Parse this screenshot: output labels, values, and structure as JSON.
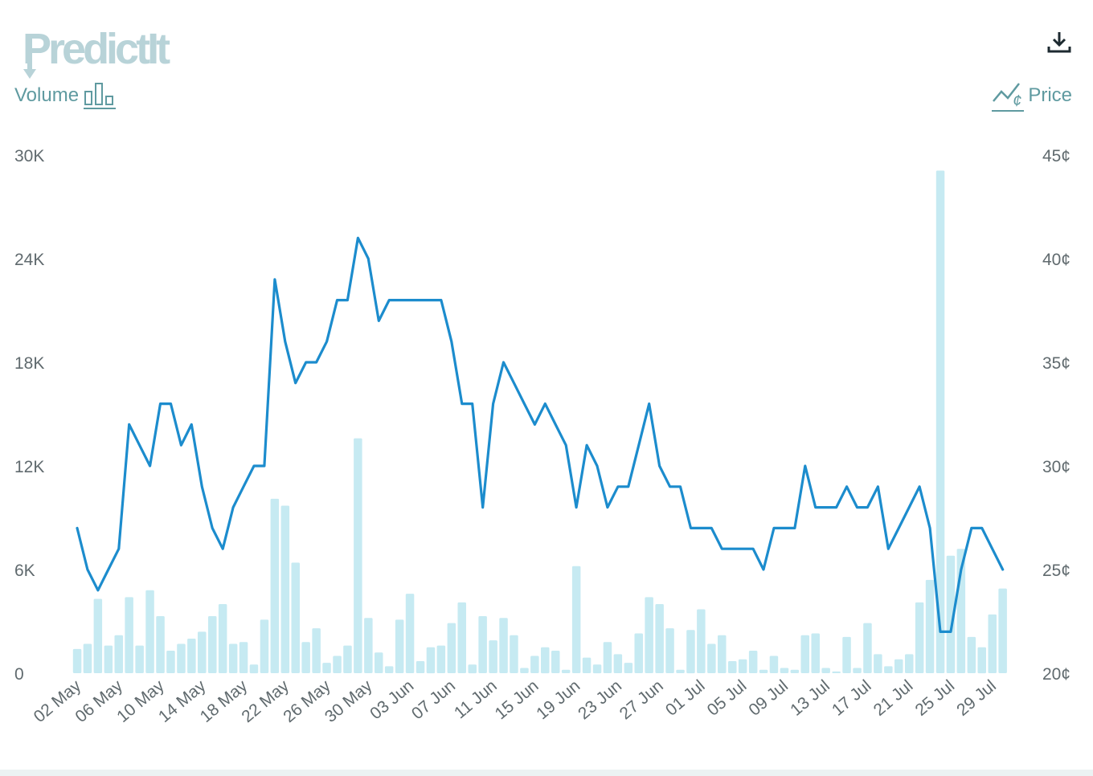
{
  "header": {
    "logo_text": "PredictIt",
    "volume_label": "Volume",
    "price_label": "Price",
    "icons": {
      "logo": "predictit-logo",
      "volume": "bar-chart-icon",
      "price": "line-chart-cent-icon",
      "download": "download-icon"
    }
  },
  "colors": {
    "volume_bar": "#c6eaf2",
    "price_line": "#1c8ccd",
    "axis_text": "#606a6e",
    "legend_text": "#5f9aa0",
    "logo": "#b8d3d8"
  },
  "chart_data": {
    "type": "bar",
    "x_tick_labels": [
      "02 May",
      "06 May",
      "10 May",
      "14 May",
      "18 May",
      "22 May",
      "26 May",
      "30 May",
      "03 Jun",
      "07 Jun",
      "11 Jun",
      "15 Jun",
      "19 Jun",
      "23 Jun",
      "27 Jun",
      "01 Jul",
      "05 Jul",
      "09 Jul",
      "13 Jul",
      "17 Jul",
      "21 Jul",
      "25 Jul",
      "29 Jul"
    ],
    "y_left": {
      "label": "Volume",
      "ticks": [
        "0",
        "6K",
        "12K",
        "18K",
        "24K",
        "30K"
      ],
      "ylim": [
        0,
        30000
      ]
    },
    "y_right": {
      "label": "Price",
      "ticks": [
        "20¢",
        "25¢",
        "30¢",
        "35¢",
        "40¢",
        "45¢"
      ],
      "ylim": [
        20,
        45
      ]
    },
    "start_date": "02 May",
    "series": [
      {
        "name": "Volume",
        "type": "bar",
        "values": [
          1400,
          1700,
          4300,
          1600,
          2200,
          4400,
          1600,
          4800,
          3300,
          1300,
          1700,
          2000,
          2400,
          3300,
          4000,
          1700,
          1800,
          500,
          3100,
          10100,
          9700,
          6400,
          1800,
          2600,
          600,
          1000,
          1600,
          13600,
          3200,
          1200,
          400,
          3100,
          4600,
          700,
          1500,
          1600,
          2900,
          4100,
          500,
          3300,
          1900,
          3200,
          2200,
          300,
          1000,
          1500,
          1300,
          200,
          6200,
          900,
          500,
          1800,
          1100,
          600,
          2300,
          4400,
          4000,
          2600,
          200,
          2500,
          3700,
          1700,
          2200,
          700,
          800,
          1300,
          200,
          1000,
          300,
          200,
          2200,
          2300,
          300,
          100,
          2100,
          300,
          2900,
          1100,
          400,
          800,
          1100,
          4100,
          5400,
          29100,
          6800,
          7200,
          2100,
          1500,
          3400,
          4900
        ]
      },
      {
        "name": "Price",
        "type": "line",
        "values": [
          27,
          25,
          24,
          25,
          26,
          32,
          31,
          30,
          33,
          33,
          31,
          32,
          29,
          27,
          26,
          28,
          29,
          30,
          30,
          39,
          36,
          34,
          35,
          35,
          36,
          38,
          38,
          41,
          40,
          37,
          38,
          38,
          38,
          38,
          38,
          38,
          36,
          33,
          33,
          28,
          33,
          35,
          34,
          33,
          32,
          33,
          32,
          31,
          28,
          31,
          30,
          28,
          29,
          29,
          31,
          33,
          30,
          29,
          29,
          27,
          27,
          27,
          26,
          26,
          26,
          26,
          25,
          27,
          27,
          27,
          30,
          28,
          28,
          28,
          29,
          28,
          28,
          29,
          26,
          27,
          28,
          29,
          27,
          22,
          22,
          25,
          27,
          27,
          26,
          25
        ]
      }
    ]
  }
}
